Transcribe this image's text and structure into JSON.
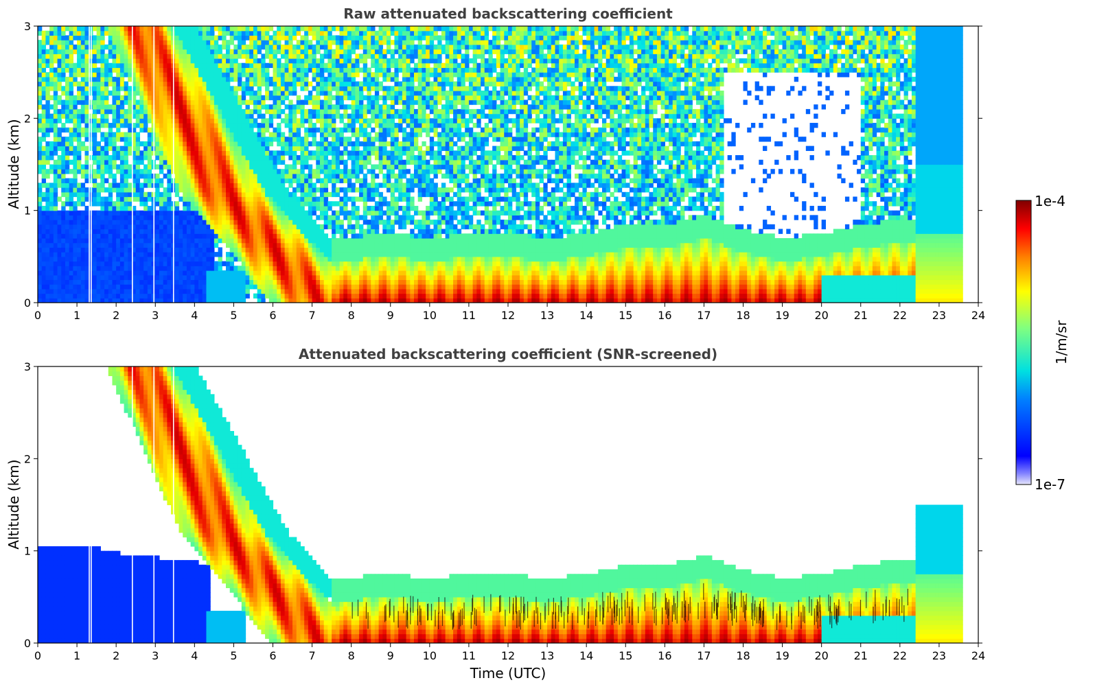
{
  "chart_data": [
    {
      "type": "heatmap",
      "title": "Raw attenuated backscattering coefficient",
      "xlabel": "",
      "ylabel": "Altitude (km)",
      "xlim": [
        0,
        24
      ],
      "ylim": [
        0,
        3
      ],
      "xticks": [
        "0",
        "1",
        "2",
        "3",
        "4",
        "5",
        "6",
        "7",
        "8",
        "9",
        "10",
        "11",
        "12",
        "13",
        "14",
        "15",
        "16",
        "17",
        "18",
        "19",
        "20",
        "21",
        "22",
        "23",
        "24"
      ],
      "yticks": [
        "0",
        "1",
        "2",
        "3"
      ],
      "screened": false,
      "series": [
        {
          "name": "descending plume",
          "x_start": [
            1.6,
            3.0
          ],
          "x_end": [
            4.3,
            7.2
          ],
          "top_km": 3.0
        },
        {
          "name": "boundary layer",
          "x": [
            7.5,
            9,
            10,
            11,
            12,
            13,
            14,
            15,
            16,
            17,
            18,
            19,
            20,
            21,
            22,
            22.4
          ],
          "top_km": [
            0.45,
            0.5,
            0.45,
            0.5,
            0.5,
            0.45,
            0.5,
            0.6,
            0.6,
            0.7,
            0.55,
            0.45,
            0.5,
            0.6,
            0.65,
            0.65
          ]
        }
      ]
    },
    {
      "type": "heatmap",
      "title": "Attenuated backscattering coefficient (SNR-screened)",
      "xlabel": "Time (UTC)",
      "ylabel": "Altitude (km)",
      "xlim": [
        0,
        24
      ],
      "ylim": [
        0,
        3
      ],
      "xticks": [
        "0",
        "1",
        "2",
        "3",
        "4",
        "5",
        "6",
        "7",
        "8",
        "9",
        "10",
        "11",
        "12",
        "13",
        "14",
        "15",
        "16",
        "17",
        "18",
        "19",
        "20",
        "21",
        "22",
        "23",
        "24"
      ],
      "yticks": [
        "0",
        "1",
        "2",
        "3"
      ],
      "screened": true
    }
  ],
  "colorbar": {
    "label": "1/m/sr",
    "max_label": "1e-4",
    "min_label": "1e-7",
    "range": [
      1e-07,
      0.0001
    ],
    "scale": "log",
    "colormap": "jet"
  }
}
